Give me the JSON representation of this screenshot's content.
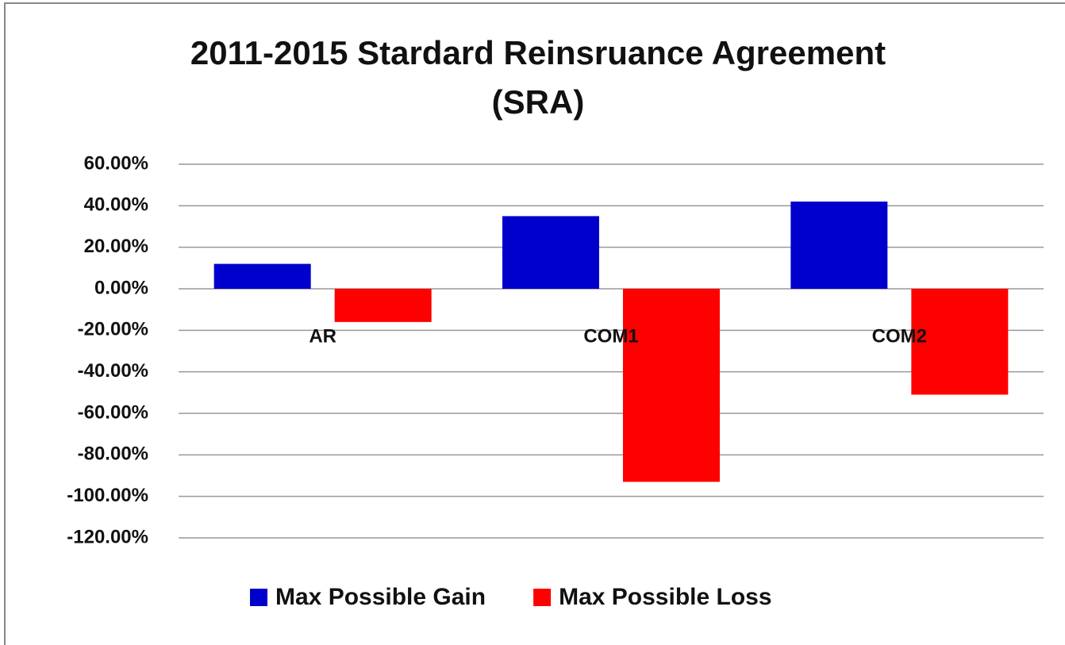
{
  "chart_data": {
    "type": "bar",
    "title": [
      "2011-2015 Stardard Reinsruance Agreement",
      "(SRA)"
    ],
    "categories": [
      "AR",
      "COM1",
      "COM2"
    ],
    "series": [
      {
        "name": "Max Possible Gain",
        "color": "#0000cc",
        "values": [
          12,
          35,
          42
        ]
      },
      {
        "name": "Max Possible Loss",
        "color": "#ff0000",
        "values": [
          -16,
          -93,
          -51
        ]
      }
    ],
    "ylim": [
      -120,
      60
    ],
    "yticks": [
      {
        "value": 60,
        "label": "60.00%"
      },
      {
        "value": 40,
        "label": "40.00%"
      },
      {
        "value": 20,
        "label": "20.00%"
      },
      {
        "value": 0,
        "label": "0.00%"
      },
      {
        "value": -20,
        "label": "-20.00%"
      },
      {
        "value": -40,
        "label": "-40.00%"
      },
      {
        "value": -60,
        "label": "-60.00%"
      },
      {
        "value": -80,
        "label": "-80.00%"
      },
      {
        "value": -100,
        "label": "-100.00%"
      },
      {
        "value": -120,
        "label": "-120.00%"
      }
    ],
    "grid": true,
    "legend": "bottom"
  }
}
